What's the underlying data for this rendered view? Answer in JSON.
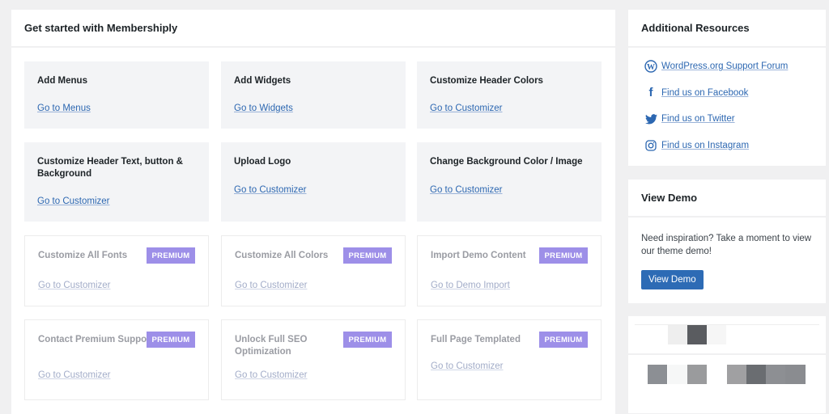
{
  "main": {
    "title": "Get started with Membershiply",
    "cards": [
      {
        "title": "Add Menus",
        "link": "Go to Menus"
      },
      {
        "title": "Add Widgets",
        "link": "Go to Widgets"
      },
      {
        "title": "Customize Header Colors",
        "link": "Go to Customizer"
      },
      {
        "title": "Customize Header Text, button & Background",
        "link": "Go to Customizer"
      },
      {
        "title": "Upload Logo",
        "link": "Go to Customizer"
      },
      {
        "title": "Change Background Color / Image",
        "link": "Go to Customizer"
      },
      {
        "title": "Customize All Fonts",
        "link": "Go to Customizer",
        "badge": "PREMIUM"
      },
      {
        "title": "Customize All Colors",
        "link": "Go to Customizer",
        "badge": "PREMIUM"
      },
      {
        "title": "Import Demo Content",
        "link": "Go to Demo Import",
        "badge": "PREMIUM"
      },
      {
        "title": "Contact Premium Support",
        "link": "Go to Customizer",
        "badge": "PREMIUM"
      },
      {
        "title": "Unlock Full SEO Optimization",
        "link": "Go to Customizer",
        "badge": "PREMIUM"
      },
      {
        "title": "Full Page Templated",
        "link": "Go to Customizer",
        "badge": "PREMIUM"
      }
    ]
  },
  "resources": {
    "title": "Additional Resources",
    "items": [
      {
        "icon": "wordpress-icon",
        "label": "WordPress.org Support Forum"
      },
      {
        "icon": "facebook-icon",
        "label": "Find us on Facebook"
      },
      {
        "icon": "twitter-icon",
        "label": "Find us on Twitter"
      },
      {
        "icon": "instagram-icon",
        "label": "Find us on Instagram"
      }
    ]
  },
  "demo": {
    "title": "View Demo",
    "text": "Need inspiration? Take a moment to view our theme demo!",
    "button": "View Demo"
  },
  "colors": {
    "accent": "#2d6bb5",
    "premium": "#9d8fe8"
  }
}
